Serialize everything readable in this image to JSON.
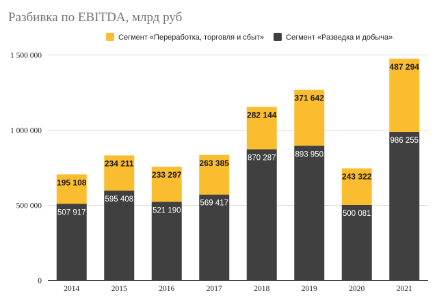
{
  "chart_data": {
    "type": "bar",
    "stacked": true,
    "title": "Разбивка по EBITDA, млрд руб",
    "categories": [
      "2014",
      "2015",
      "2016",
      "2017",
      "2018",
      "2019",
      "2020",
      "2021"
    ],
    "series": [
      {
        "name": "Сегмент «Разведка и добыча»",
        "color": "#404040",
        "values": [
          507917,
          595408,
          521190,
          569417,
          870287,
          893950,
          500081,
          986255
        ],
        "labels": [
          "507 917",
          "595 408",
          "521 190",
          "569 417",
          "870 287",
          "893 950",
          "500 081",
          "986 255"
        ]
      },
      {
        "name": "Сегмент «Переработка, торговля и сбыт»",
        "color": "#fbbd30",
        "values": [
          195108,
          234211,
          233297,
          263385,
          282144,
          371642,
          243322,
          487294
        ],
        "labels": [
          "195 108",
          "234 211",
          "233 297",
          "263 385",
          "282 144",
          "371 642",
          "243 322",
          "487 294"
        ]
      }
    ],
    "legend_order": [
      1,
      0
    ],
    "ylim": [
      0,
      1500000
    ],
    "yticks": [
      0,
      500000,
      1000000,
      1500000
    ],
    "ytick_labels": [
      "0",
      "500 000",
      "1 000 000",
      "1 500 000"
    ],
    "grid": true,
    "legend_position": "top"
  }
}
